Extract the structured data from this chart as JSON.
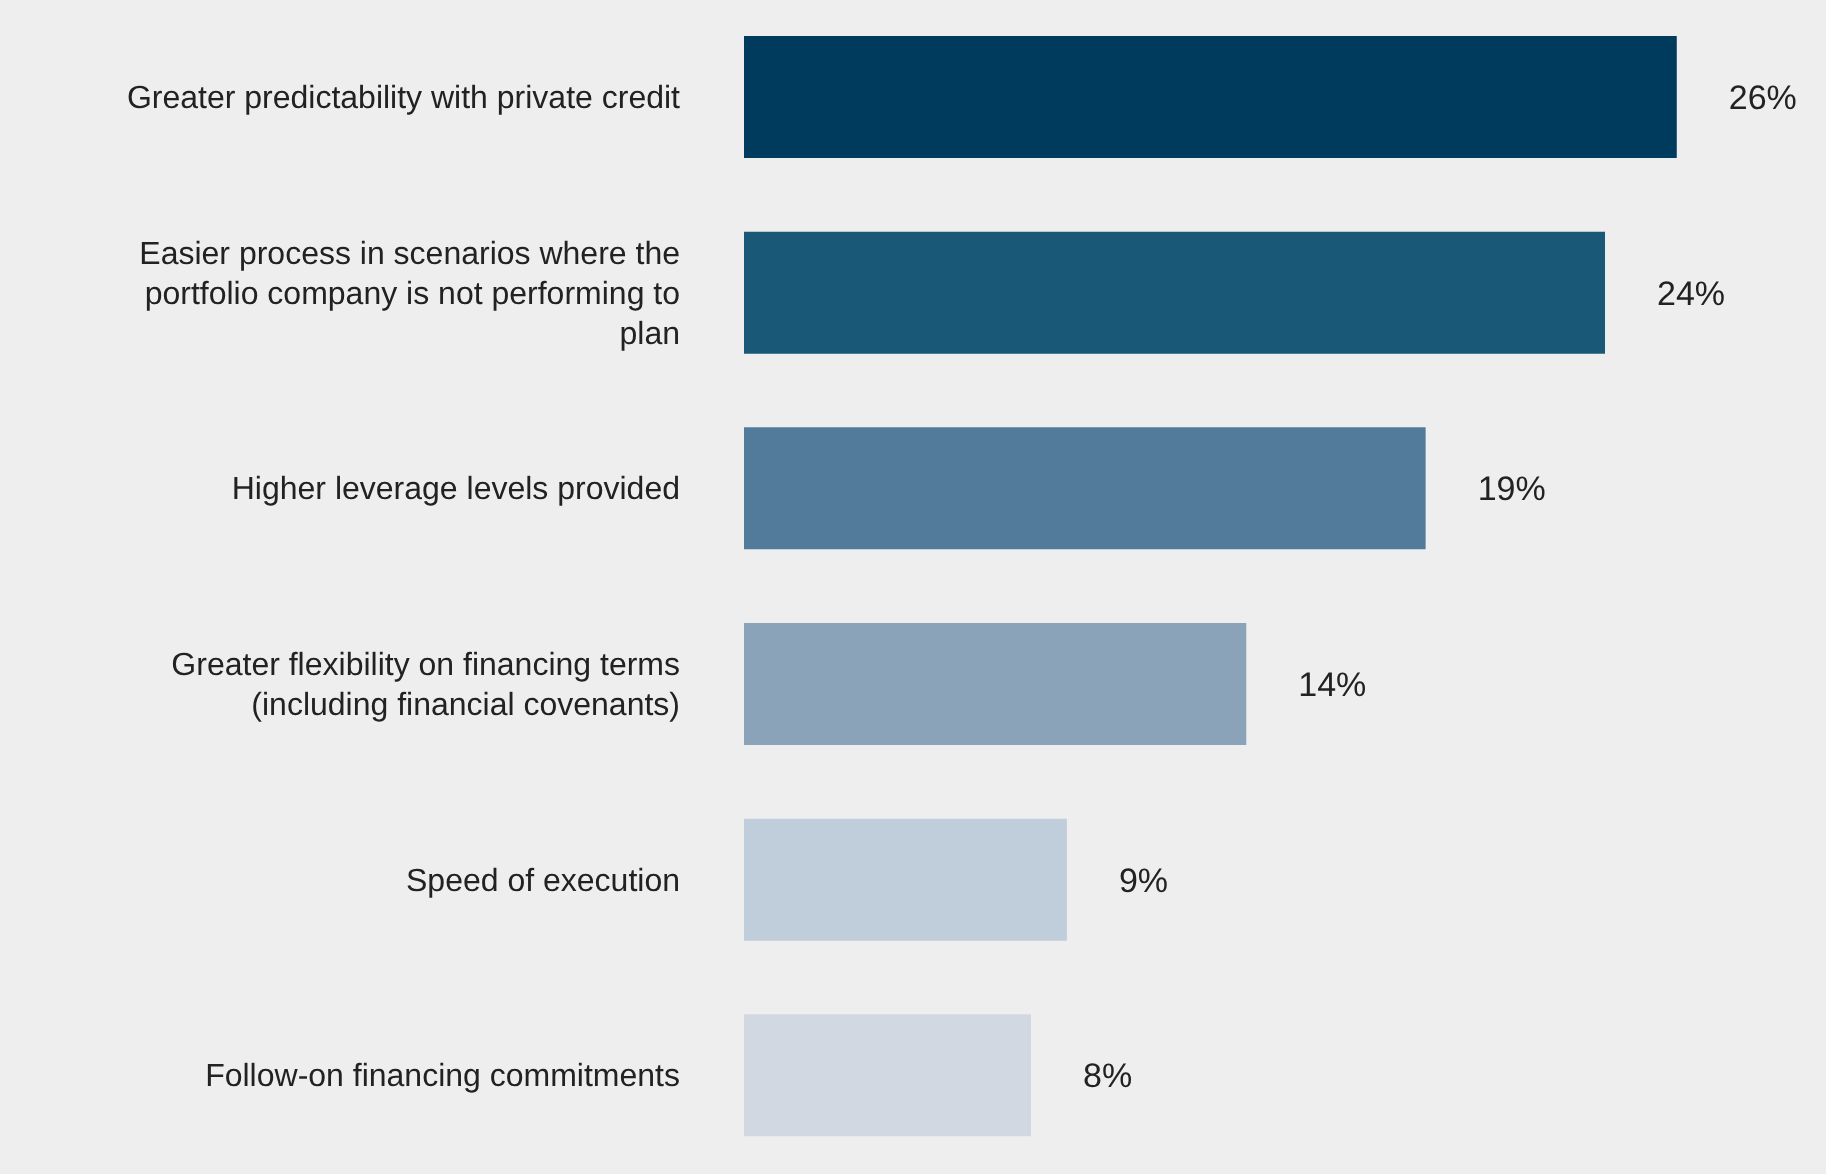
{
  "chart_data": {
    "type": "bar",
    "orientation": "horizontal",
    "categories": [
      "Greater predictability with private credit",
      "Easier process in scenarios where the portfolio company is not performing to plan",
      "Higher leverage levels provided",
      "Greater flexibility on financing terms (including financial covenants)",
      "Speed of execution",
      "Follow-on financing commitments"
    ],
    "values": [
      26,
      24,
      19,
      14,
      9,
      8
    ],
    "colors": [
      "#003a5d",
      "#1a5878",
      "#527a9a",
      "#8ba3b9",
      "#c0cddb",
      "#d2d8e1"
    ],
    "value_labels": [
      "26%",
      "24%",
      "19%",
      "14%",
      "9%",
      "8%"
    ],
    "tick_labels": "y",
    "grid": false,
    "legend": false
  }
}
